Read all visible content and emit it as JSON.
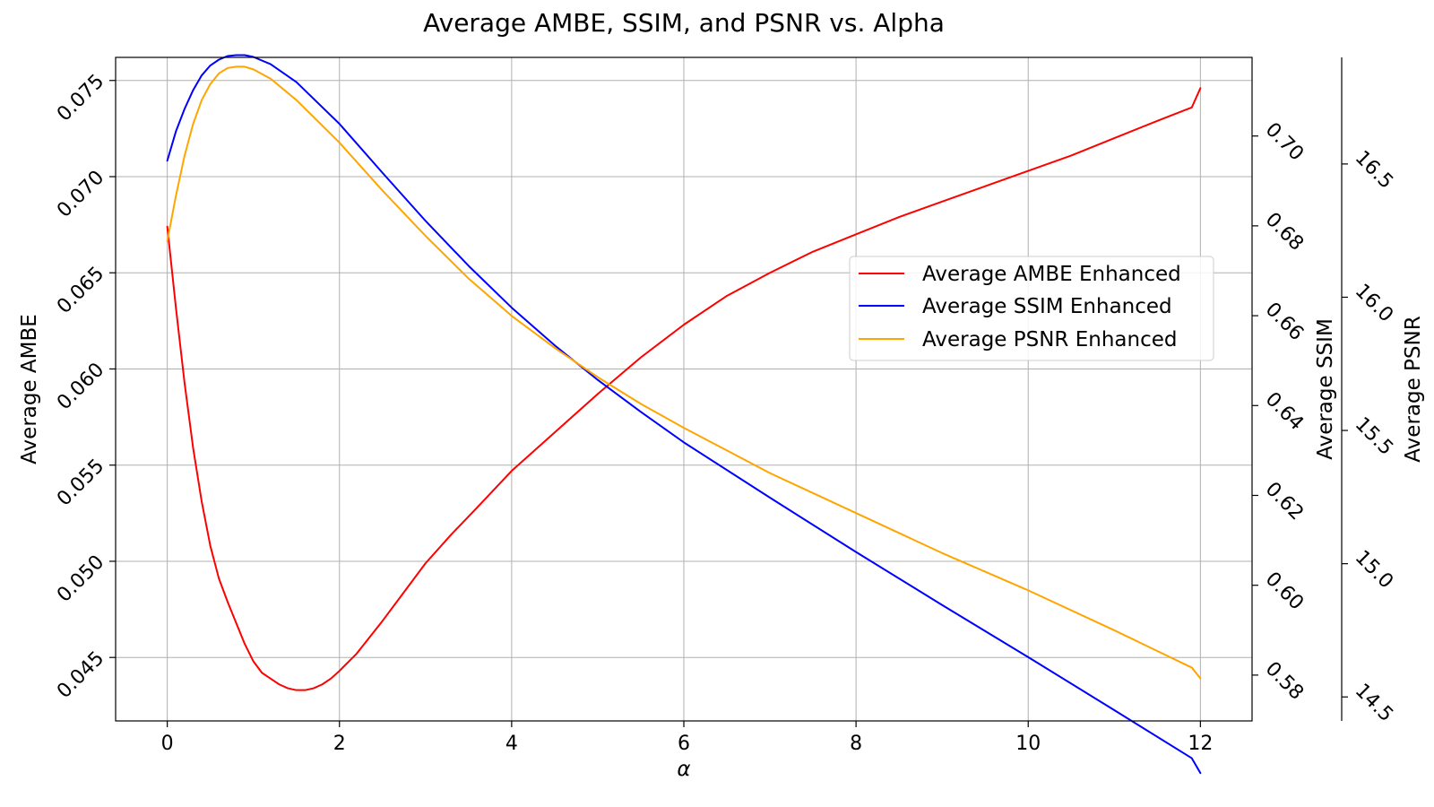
{
  "chart_data": {
    "type": "line",
    "title": "Average AMBE, SSIM, and PSNR vs. Alpha",
    "xlabel": "α",
    "xlim": [
      -0.6,
      12.6
    ],
    "xticks": [
      0,
      2,
      4,
      6,
      8,
      10,
      12
    ],
    "grid": true,
    "legend_position": "center-right",
    "axes": [
      {
        "id": "ambe",
        "label": "Average AMBE",
        "side": "left",
        "ylim": [
          0.0417,
          0.0762
        ],
        "ticks": [
          0.045,
          0.05,
          0.055,
          0.06,
          0.065,
          0.07,
          0.075
        ],
        "tick_labels": [
          "0.045",
          "0.050",
          "0.055",
          "0.060",
          "0.065",
          "0.070",
          "0.075"
        ]
      },
      {
        "id": "ssim",
        "label": "Average SSIM",
        "side": "right",
        "ylim": [
          0.5698,
          0.7175
        ],
        "ticks": [
          0.58,
          0.6,
          0.62,
          0.64,
          0.66,
          0.68,
          0.7
        ],
        "tick_labels": [
          "0.58",
          "0.60",
          "0.62",
          "0.64",
          "0.66",
          "0.68",
          "0.70"
        ]
      },
      {
        "id": "psnr",
        "label": "Average PSNR",
        "side": "right-outer",
        "ylim": [
          14.41,
          16.9
        ],
        "ticks": [
          14.5,
          15.0,
          15.5,
          16.0,
          16.5
        ],
        "tick_labels": [
          "14.5",
          "15.0",
          "15.5",
          "16.0",
          "16.5"
        ]
      }
    ],
    "series": [
      {
        "name": "Average AMBE Enhanced",
        "axis": "ambe",
        "color": "#ff0000",
        "x": [
          0,
          0.1,
          0.2,
          0.3,
          0.4,
          0.5,
          0.6,
          0.7,
          0.8,
          0.9,
          1.0,
          1.1,
          1.2,
          1.3,
          1.4,
          1.5,
          1.6,
          1.7,
          1.8,
          1.9,
          2.0,
          2.2,
          2.5,
          2.8,
          3.0,
          3.3,
          3.6,
          4.0,
          4.5,
          5.0,
          5.5,
          6.0,
          6.5,
          7.0,
          7.5,
          8.0,
          8.5,
          9.0,
          9.5,
          10.0,
          10.5,
          11.0,
          11.5,
          11.9,
          12.0
        ],
        "y": [
          0.0674,
          0.0632,
          0.0593,
          0.0559,
          0.0531,
          0.0508,
          0.0491,
          0.0479,
          0.0468,
          0.0457,
          0.0448,
          0.0442,
          0.0439,
          0.0436,
          0.0434,
          0.0433,
          0.0433,
          0.0434,
          0.0436,
          0.0439,
          0.0443,
          0.0452,
          0.0469,
          0.0487,
          0.0499,
          0.0514,
          0.0528,
          0.0547,
          0.0567,
          0.0587,
          0.0606,
          0.0623,
          0.0638,
          0.065,
          0.0661,
          0.067,
          0.0679,
          0.0687,
          0.0695,
          0.0703,
          0.0711,
          0.072,
          0.0729,
          0.0736,
          0.0746
        ]
      },
      {
        "name": "Average SSIM Enhanced",
        "axis": "ssim",
        "color": "#0000ff",
        "x": [
          0,
          0.1,
          0.2,
          0.3,
          0.4,
          0.5,
          0.6,
          0.7,
          0.8,
          0.9,
          1.0,
          1.2,
          1.5,
          2.0,
          2.5,
          3.0,
          3.5,
          4.0,
          4.5,
          5.0,
          5.5,
          6.0,
          7.0,
          8.0,
          9.0,
          10.0,
          11.0,
          11.9,
          12.0
        ],
        "y": [
          0.6945,
          0.701,
          0.706,
          0.7102,
          0.7135,
          0.7157,
          0.717,
          0.7178,
          0.718,
          0.718,
          0.7176,
          0.716,
          0.712,
          0.7027,
          0.6918,
          0.6811,
          0.6711,
          0.6618,
          0.6534,
          0.6457,
          0.6386,
          0.6318,
          0.6195,
          0.6074,
          0.5956,
          0.584,
          0.5722,
          0.5615,
          0.5582
        ]
      },
      {
        "name": "Average PSNR Enhanced",
        "axis": "psnr",
        "color": "#ffa500",
        "x": [
          0,
          0.1,
          0.2,
          0.3,
          0.4,
          0.5,
          0.6,
          0.7,
          0.8,
          0.9,
          1.0,
          1.2,
          1.5,
          2.0,
          2.5,
          3.0,
          3.5,
          4.0,
          4.5,
          5.0,
          5.5,
          6.0,
          7.0,
          8.0,
          9.0,
          10.0,
          11.0,
          11.9,
          12.0
        ],
        "y": [
          16.21,
          16.38,
          16.53,
          16.65,
          16.74,
          16.8,
          16.84,
          16.86,
          16.865,
          16.865,
          16.855,
          16.82,
          16.74,
          16.58,
          16.4,
          16.23,
          16.07,
          15.93,
          15.81,
          15.7,
          15.6,
          15.51,
          15.34,
          15.19,
          15.04,
          14.9,
          14.75,
          14.61,
          14.57
        ]
      }
    ]
  }
}
